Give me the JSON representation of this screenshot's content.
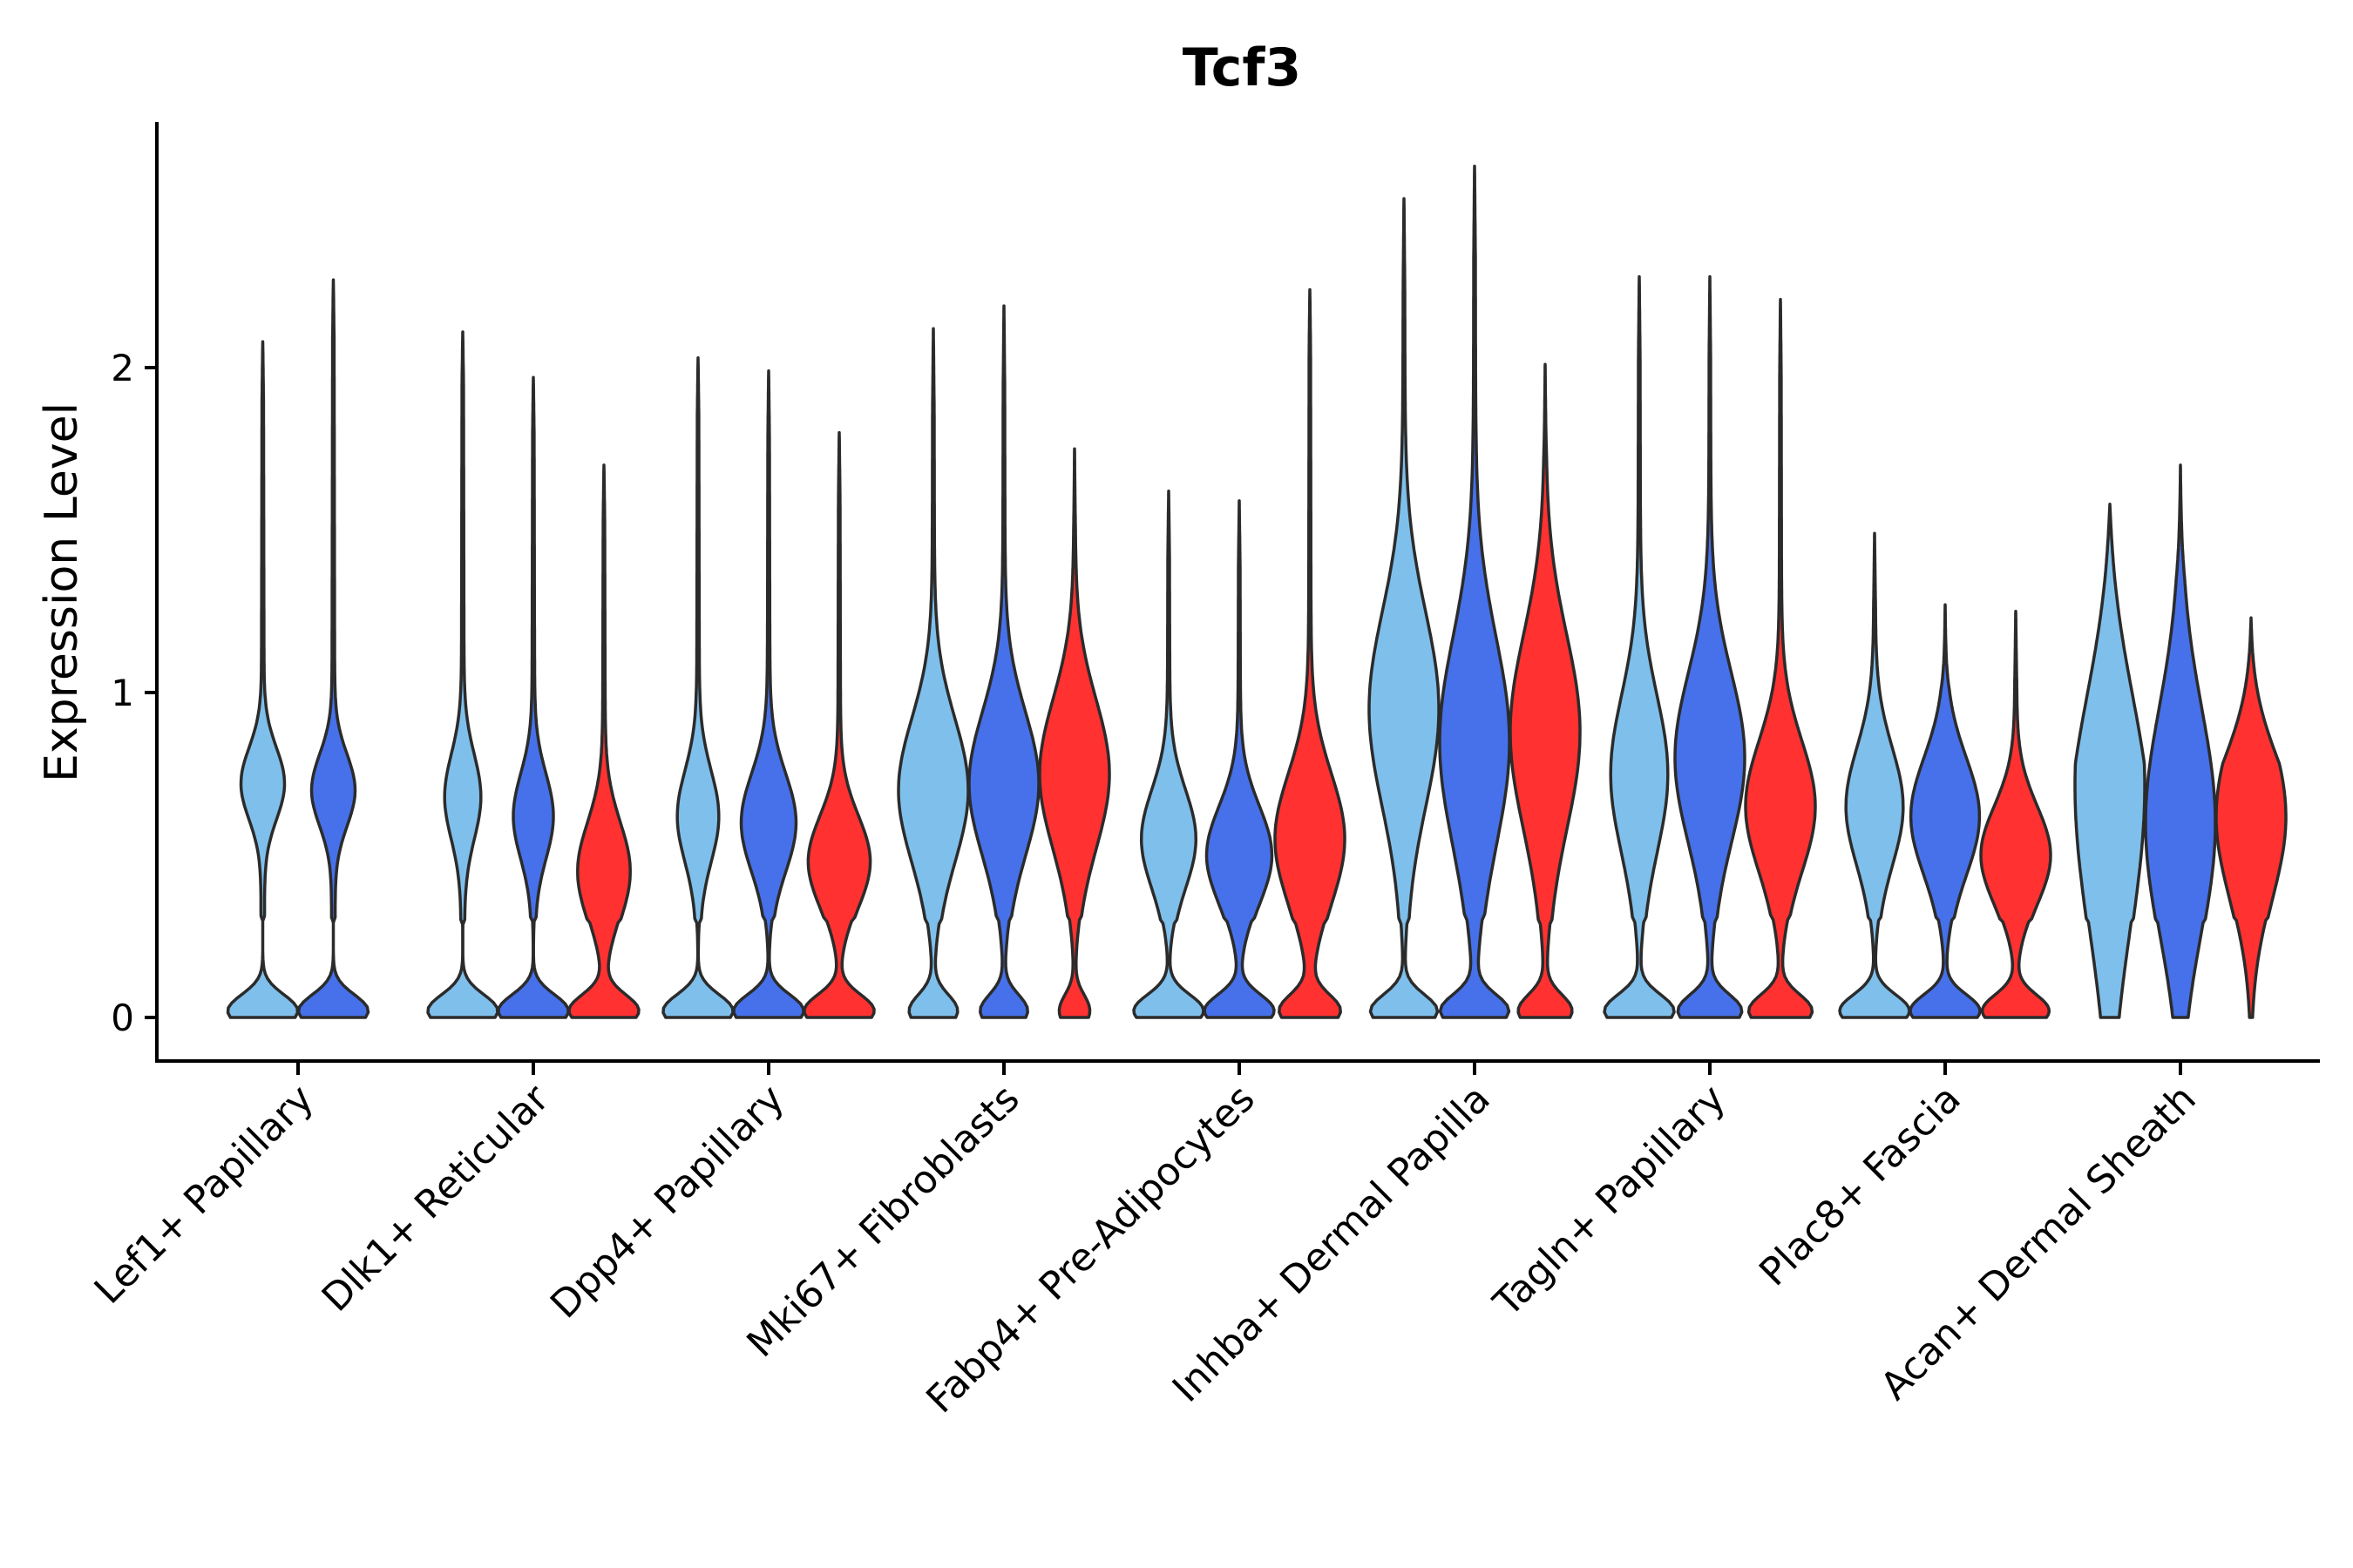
{
  "chart_data": {
    "type": "violin",
    "title": "Tcf3",
    "xlabel": "",
    "ylabel": "Expression Level",
    "ylim": [
      -0.13,
      2.75
    ],
    "yticks": [
      0,
      1,
      2
    ],
    "grid": false,
    "legend": "none",
    "series_colors": [
      "#7fbfeb",
      "#4671ea",
      "#ff3131"
    ],
    "categories": [
      "Lef1+ Papillary",
      "Dlk1+ Reticular",
      "Dpp4+ Papillary",
      "Mki67+ Fibroblasts",
      "Fabp4+ Pre-Adipocytes",
      "Inhba+ Dermal Papilla",
      "Tagln+ Papillary",
      "Plac8+ Fascia",
      "Acan+ Dermal Sheath"
    ],
    "groups": [
      {
        "category": "Lef1+ Papillary",
        "violins": [
          {
            "series": 0,
            "max": 2.08,
            "modes": [
              [
                0.02,
                0.95,
                0.05
              ],
              [
                0.72,
                0.55,
                0.11
              ]
            ],
            "tail": 0.18
          },
          {
            "series": 1,
            "max": 2.27,
            "modes": [
              [
                0.02,
                0.95,
                0.05
              ],
              [
                0.7,
                0.55,
                0.11
              ]
            ],
            "tail": 0.18
          }
        ]
      },
      {
        "category": "Dlk1+ Reticular",
        "violins": [
          {
            "series": 0,
            "max": 2.11,
            "modes": [
              [
                0.02,
                0.95,
                0.05
              ],
              [
                0.68,
                0.45,
                0.13
              ]
            ],
            "tail": 0.16
          },
          {
            "series": 1,
            "max": 1.97,
            "modes": [
              [
                0.02,
                0.95,
                0.05
              ],
              [
                0.62,
                0.5,
                0.13
              ]
            ],
            "tail": 0.17
          },
          {
            "series": 2,
            "max": 1.7,
            "modes": [
              [
                0.02,
                0.95,
                0.05
              ],
              [
                0.45,
                0.68,
                0.15
              ]
            ],
            "tail": 0.17
          }
        ]
      },
      {
        "category": "Dpp4+ Papillary",
        "violins": [
          {
            "series": 0,
            "max": 2.03,
            "modes": [
              [
                0.02,
                0.95,
                0.05
              ],
              [
                0.62,
                0.52,
                0.14
              ]
            ],
            "tail": 0.18
          },
          {
            "series": 1,
            "max": 1.99,
            "modes": [
              [
                0.02,
                0.95,
                0.05
              ],
              [
                0.6,
                0.7,
                0.15
              ]
            ],
            "tail": 0.2
          },
          {
            "series": 2,
            "max": 1.8,
            "modes": [
              [
                0.02,
                0.95,
                0.05
              ],
              [
                0.48,
                0.8,
                0.14
              ]
            ],
            "tail": 0.2
          }
        ]
      },
      {
        "category": "Mki67+ Fibroblasts",
        "violins": [
          {
            "series": 0,
            "max": 2.12,
            "modes": [
              [
                0.02,
                0.65,
                0.05
              ],
              [
                0.7,
                0.9,
                0.22
              ]
            ],
            "tail": 0.25
          },
          {
            "series": 1,
            "max": 2.19,
            "modes": [
              [
                0.02,
                0.65,
                0.05
              ],
              [
                0.72,
                0.92,
                0.22
              ]
            ],
            "tail": 0.25
          },
          {
            "series": 2,
            "max": 1.75,
            "modes": [
              [
                0.02,
                0.45,
                0.05
              ],
              [
                0.75,
                1.0,
                0.23
              ]
            ],
            "tail": 0.25
          }
        ]
      },
      {
        "category": "Fabp4+ Pre-Adipocytes",
        "violins": [
          {
            "series": 0,
            "max": 1.62,
            "modes": [
              [
                0.02,
                0.95,
                0.05
              ],
              [
                0.55,
                0.7,
                0.15
              ]
            ],
            "tail": 0.2
          },
          {
            "series": 1,
            "max": 1.59,
            "modes": [
              [
                0.02,
                0.95,
                0.05
              ],
              [
                0.5,
                0.85,
                0.15
              ]
            ],
            "tail": 0.2
          },
          {
            "series": 2,
            "max": 2.24,
            "modes": [
              [
                0.02,
                0.85,
                0.05
              ],
              [
                0.55,
                0.95,
                0.2
              ]
            ],
            "tail": 0.18
          }
        ]
      },
      {
        "category": "Inhba+ Dermal Papilla",
        "violins": [
          {
            "series": 0,
            "max": 2.52,
            "modes": [
              [
                0.02,
                0.85,
                0.05
              ],
              [
                0.95,
                0.85,
                0.3
              ]
            ],
            "tail": 0.28
          },
          {
            "series": 1,
            "max": 2.62,
            "modes": [
              [
                0.02,
                0.85,
                0.05
              ],
              [
                0.85,
                0.85,
                0.32
              ]
            ],
            "tail": 0.28
          },
          {
            "series": 2,
            "max": 2.01,
            "modes": [
              [
                0.02,
                0.75,
                0.05
              ],
              [
                0.88,
                0.95,
                0.3
              ]
            ],
            "tail": 0.28
          }
        ]
      },
      {
        "category": "Tagln+ Papillary",
        "violins": [
          {
            "series": 0,
            "max": 2.28,
            "modes": [
              [
                0.02,
                0.9,
                0.05
              ],
              [
                0.75,
                0.7,
                0.24
              ]
            ],
            "tail": 0.25
          },
          {
            "series": 1,
            "max": 2.28,
            "modes": [
              [
                0.02,
                0.9,
                0.05
              ],
              [
                0.8,
                0.95,
                0.26
              ]
            ],
            "tail": 0.25
          },
          {
            "series": 2,
            "max": 2.21,
            "modes": [
              [
                0.02,
                0.9,
                0.05
              ],
              [
                0.65,
                0.95,
                0.2
              ]
            ],
            "tail": 0.23
          }
        ]
      },
      {
        "category": "Plac8+ Fascia",
        "violins": [
          {
            "series": 0,
            "max": 1.49,
            "modes": [
              [
                0.02,
                0.9,
                0.05
              ],
              [
                0.65,
                0.7,
                0.18
              ]
            ],
            "tail": 0.22
          },
          {
            "series": 1,
            "max": 1.27,
            "modes": [
              [
                0.02,
                0.9,
                0.05
              ],
              [
                0.62,
                0.85,
                0.18
              ]
            ],
            "tail": 0.26
          },
          {
            "series": 2,
            "max": 1.25,
            "modes": [
              [
                0.02,
                0.85,
                0.05
              ],
              [
                0.5,
                0.85,
                0.15
              ]
            ],
            "tail": 0.22
          }
        ]
      },
      {
        "category": "Acan+ Dermal Sheath",
        "violins": [
          {
            "series": 0,
            "max": 1.58,
            "modes": [
              [
                0.72,
                0.9,
                0.45
              ]
            ],
            "tail": 0.8
          },
          {
            "series": 1,
            "max": 1.7,
            "modes": [
              [
                0.6,
                0.95,
                0.35
              ]
            ],
            "tail": 0.35
          },
          {
            "series": 2,
            "max": 1.23,
            "modes": [
              [
                0.62,
                0.95,
                0.25
              ]
            ],
            "tail": 0.45
          }
        ]
      }
    ]
  }
}
